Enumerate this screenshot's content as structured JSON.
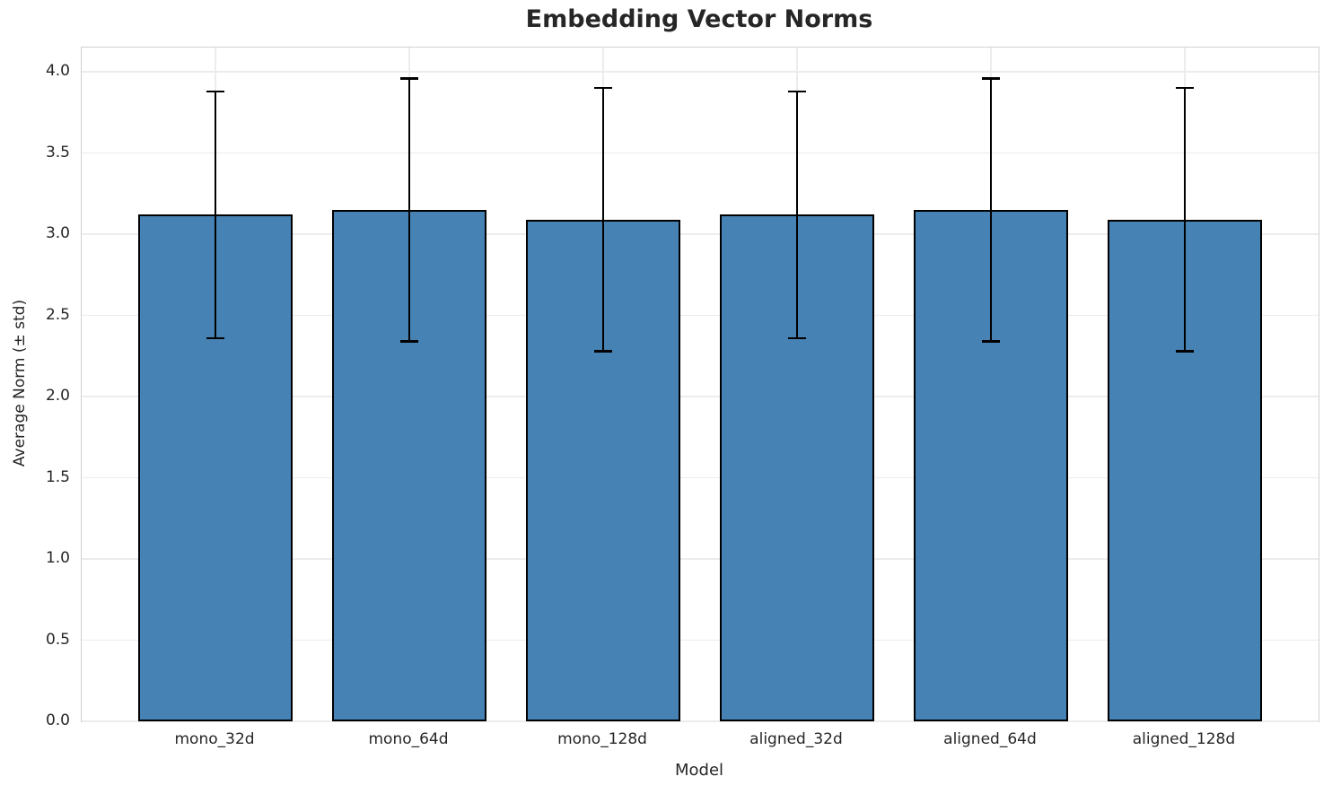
{
  "chart_data": {
    "type": "bar",
    "title": "Embedding Vector Norms",
    "xlabel": "Model",
    "ylabel": "Average Norm (± std)",
    "categories": [
      "mono_32d",
      "mono_64d",
      "mono_128d",
      "aligned_32d",
      "aligned_64d",
      "aligned_128d"
    ],
    "values": [
      3.12,
      3.15,
      3.09,
      3.12,
      3.15,
      3.09
    ],
    "errors": [
      0.76,
      0.81,
      0.81,
      0.76,
      0.81,
      0.81
    ],
    "ylim": [
      0,
      4.15
    ],
    "yticks": [
      0.0,
      0.5,
      1.0,
      1.5,
      2.0,
      2.5,
      3.0,
      3.5,
      4.0
    ],
    "bar_width_fraction": 0.8,
    "grid": true,
    "legend": "none",
    "bar_color": "#4682b4",
    "bar_edge_color": "#000000",
    "error_color": "#000000",
    "grid_color": "#ececec",
    "spine_color": "#d0d0d0",
    "text_color": "#262626"
  }
}
